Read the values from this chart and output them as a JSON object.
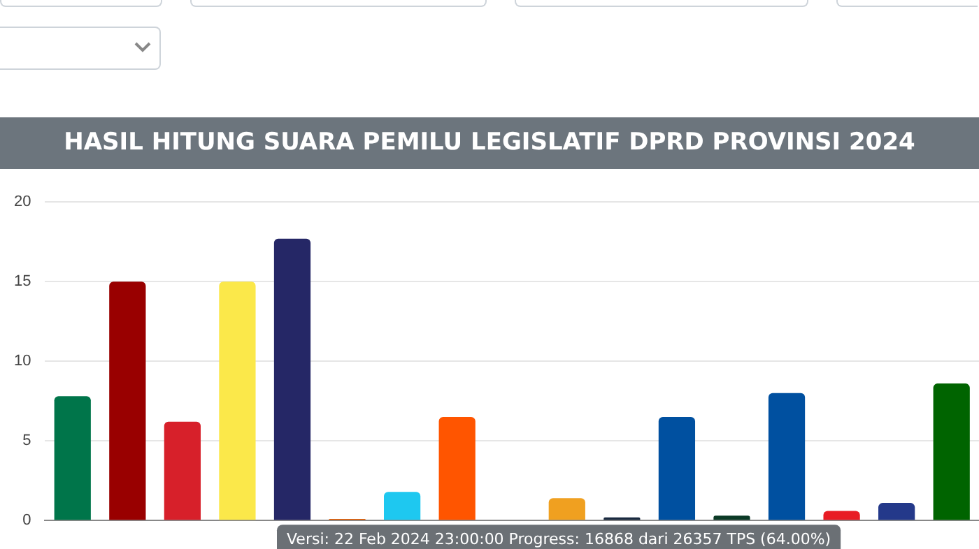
{
  "chart_data": {
    "type": "bar",
    "title": "HASIL HITUNG SUARA PEMILU LEGISLATIF DPRD PROVINSI 2024",
    "categories": [
      null,
      null,
      null,
      null,
      null,
      null,
      null,
      null,
      null,
      null,
      null,
      null,
      null,
      null,
      null,
      null,
      null
    ],
    "values": [
      7.8,
      15.0,
      6.2,
      15.0,
      17.7,
      0.1,
      1.8,
      6.5,
      0,
      1.4,
      0.2,
      6.5,
      0.3,
      8.0,
      0.6,
      1.1,
      8.6
    ],
    "colors": [
      "#00754a",
      "#990000",
      "#d7202a",
      "#fbe84a",
      "#252766",
      "#e65c00",
      "#1ec8f0",
      "#ff5500",
      "#888888",
      "#f0a020",
      "#1a2a40",
      "#0050a0",
      "#0b3a26",
      "#0050a0",
      "#e81c24",
      "#24398a",
      "#006400"
    ],
    "ylim": [
      0,
      20
    ],
    "yticks": [
      0,
      5,
      10,
      15,
      20
    ],
    "grid": "y",
    "annotations": [
      "Versi: 22 Feb 2024 23:00:00 Progress: 16868 dari 26357 TPS (64.00%)"
    ]
  }
}
